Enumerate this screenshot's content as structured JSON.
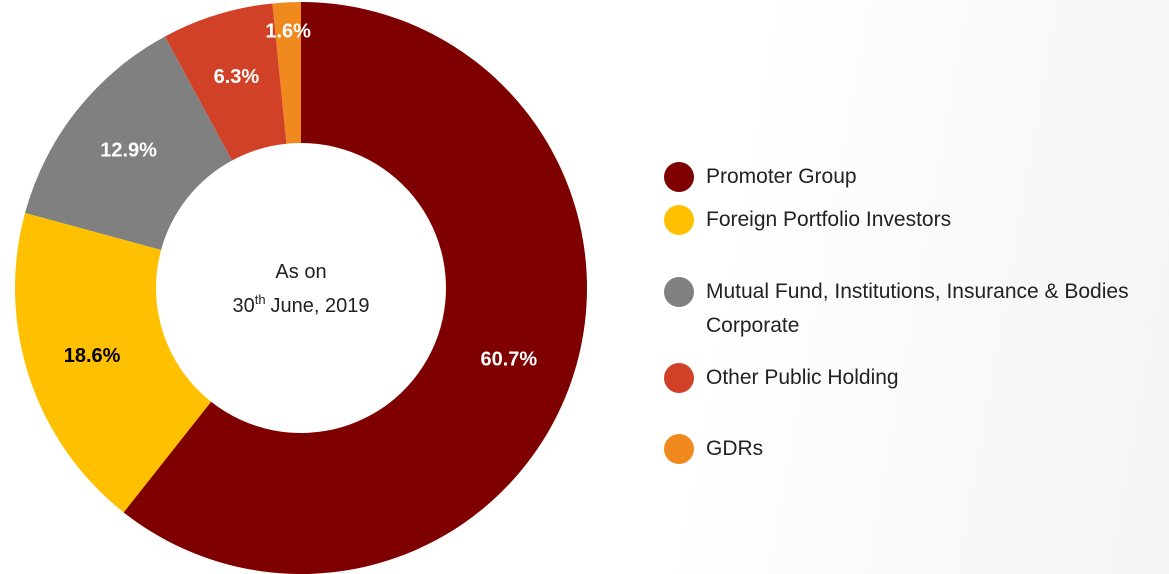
{
  "chart_data": {
    "type": "donut",
    "categories": [
      "Promoter Group",
      "Foreign Portfolio Investors",
      "Mutual Fund, Institutions, Insurance & Bodies Corporate",
      "Other Public Holding",
      "GDRs"
    ],
    "values": [
      60.7,
      18.6,
      12.9,
      6.3,
      1.6
    ],
    "value_labels": [
      "60.7%",
      "18.6%",
      "12.9%",
      "6.3%",
      "1.6%"
    ],
    "colors": [
      "#7f0000",
      "#ffc000",
      "#808080",
      "#d04128",
      "#f0891e"
    ],
    "label_colors": [
      "#ffffff",
      "#000000",
      "#ffffff",
      "#ffffff",
      "#ffffff"
    ],
    "center_label": {
      "line1": "As on",
      "day": "30",
      "suffix": "th",
      "rest": "June, 2019"
    }
  }
}
